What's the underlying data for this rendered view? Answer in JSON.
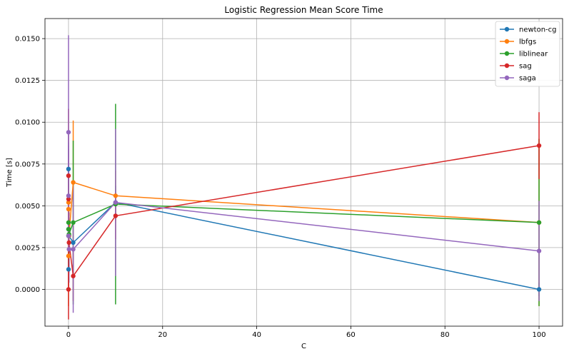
{
  "chart_data": {
    "type": "line",
    "title": "Logistic Regression Mean Score Time",
    "xlabel": "C",
    "ylabel": "Time [s]",
    "xlim": [
      -5,
      105
    ],
    "ylim": [
      -0.0022,
      0.0162
    ],
    "xticks": [
      0,
      20,
      40,
      60,
      80,
      100
    ],
    "xtick_labels": [
      "0",
      "20",
      "40",
      "60",
      "80",
      "100"
    ],
    "yticks": [
      0.0,
      0.0025,
      0.005,
      0.0075,
      0.01,
      0.0125,
      0.015
    ],
    "ytick_labels": [
      "0.0000",
      "0.0025",
      "0.0050",
      "0.0075",
      "0.0100",
      "0.0125",
      "0.0150"
    ],
    "grid": true,
    "legend_position": "top-right",
    "x": [
      0.0001,
      0.001,
      0.01,
      0.1,
      1,
      10,
      100
    ],
    "series": [
      {
        "name": "newton-cg",
        "color": "#1f77b4",
        "values": [
          0.0072,
          0.0036,
          0.0012,
          0.0032,
          0.0028,
          0.0052,
          0.0
        ],
        "errors": [
          0.0014,
          0.0012,
          0.001,
          0.0011,
          0.001,
          0.001,
          0.0004
        ]
      },
      {
        "name": "lbfgs",
        "color": "#ff7f0e",
        "values": [
          0.002,
          0.0048,
          0.0052,
          0.0032,
          0.0064,
          0.0056,
          0.004
        ],
        "errors": [
          0.003,
          0.003,
          0.002,
          0.0015,
          0.0037,
          0.0015,
          0.005
        ]
      },
      {
        "name": "liblinear",
        "color": "#2ca02c",
        "values": [
          0.0032,
          0.004,
          0.0036,
          0.0033,
          0.004,
          0.0051,
          0.004
        ],
        "errors": [
          0.002,
          0.0016,
          0.0015,
          0.0013,
          0.0049,
          0.006,
          0.005
        ]
      },
      {
        "name": "sag",
        "color": "#d62728",
        "values": [
          0.0,
          0.0068,
          0.0054,
          0.0028,
          0.0008,
          0.0044,
          0.0086
        ],
        "errors": [
          0.0018,
          0.004,
          0.003,
          0.0018,
          0.0015,
          0.0014,
          0.002
        ]
      },
      {
        "name": "saga",
        "color": "#9467bd",
        "values": [
          0.0056,
          0.0094,
          0.0032,
          0.0024,
          0.0024,
          0.0052,
          0.0023
        ],
        "errors": [
          0.0032,
          0.0058,
          0.002,
          0.002,
          0.0038,
          0.0044,
          0.003
        ]
      }
    ]
  }
}
